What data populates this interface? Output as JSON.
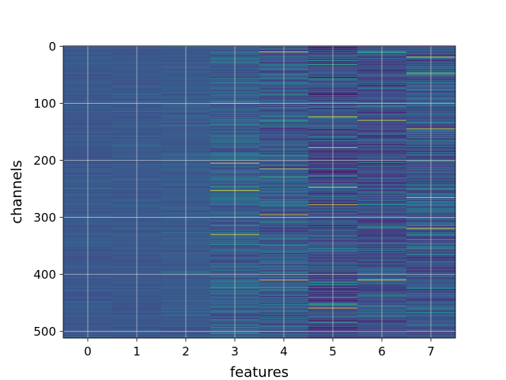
{
  "chart_data": {
    "type": "heatmap",
    "title": "",
    "xlabel": "features",
    "ylabel": "channels",
    "x_ticks": [
      "0",
      "1",
      "2",
      "3",
      "4",
      "5",
      "6",
      "7"
    ],
    "y_ticks": [
      "0",
      "100",
      "200",
      "300",
      "400",
      "500"
    ],
    "y_tick_values": [
      0,
      100,
      200,
      300,
      400,
      500
    ],
    "n_rows": 512,
    "n_cols": 8,
    "xlim": [
      -0.5,
      7.5
    ],
    "ylim": [
      511.5,
      -0.5
    ],
    "grid": true,
    "colormap": "viridis",
    "value_range": [
      0,
      1
    ],
    "columns": [
      {
        "feature": 0,
        "base": 0.27,
        "spread": 0.035,
        "bright_rows": []
      },
      {
        "feature": 1,
        "base": 0.27,
        "spread": 0.035,
        "bright_rows": []
      },
      {
        "feature": 2,
        "base": 0.28,
        "spread": 0.045,
        "bright_rows": []
      },
      {
        "feature": 3,
        "base": 0.3,
        "spread": 0.11,
        "bright_rows": [
          100,
          205,
          253,
          330
        ]
      },
      {
        "feature": 4,
        "base": 0.28,
        "spread": 0.14,
        "bright_rows": [
          10,
          215,
          295,
          410
        ]
      },
      {
        "feature": 5,
        "base": 0.24,
        "spread": 0.16,
        "bright_rows": [
          124,
          178,
          247,
          278,
          459
        ]
      },
      {
        "feature": 6,
        "base": 0.24,
        "spread": 0.14,
        "bright_rows": [
          130,
          410
        ]
      },
      {
        "feature": 7,
        "base": 0.27,
        "spread": 0.16,
        "bright_rows": [
          19,
          48,
          145,
          265,
          320
        ]
      }
    ]
  }
}
